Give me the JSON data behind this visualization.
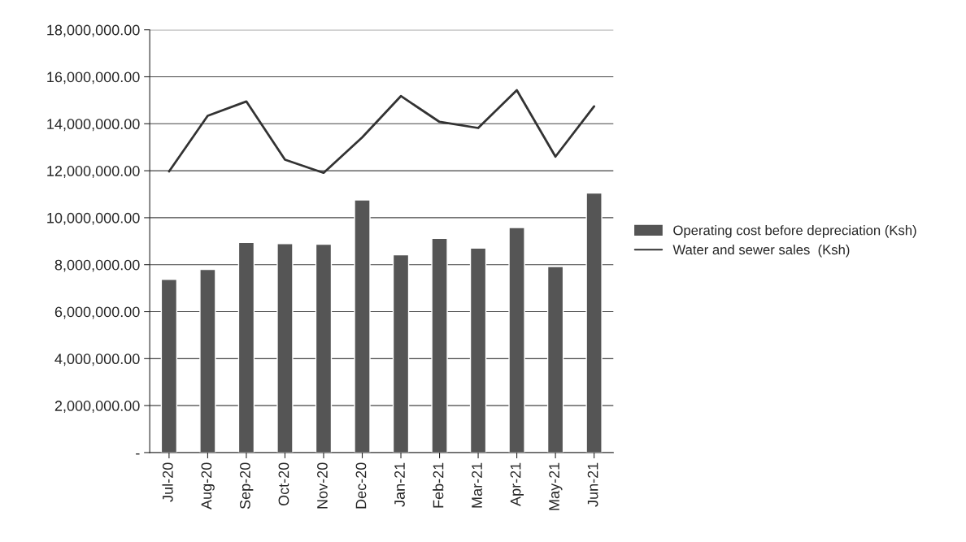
{
  "chart_data": {
    "type": "bar",
    "categories": [
      "Jul-20",
      "Aug-20",
      "Sep-20",
      "Oct-20",
      "Nov-20",
      "Dec-20",
      "Jan-21",
      "Feb-21",
      "Mar-21",
      "Apr-21",
      "May-21",
      "Jun-21"
    ],
    "series": [
      {
        "name": "Operating cost before depreciation (Ksh)",
        "color": "#555555",
        "values": [
          7370000,
          7800000,
          8950000,
          8900000,
          8870000,
          10760000,
          8420000,
          9120000,
          8710000,
          9580000,
          7920000,
          11050000
        ]
      },
      {
        "name": "Water and sewer sales  (Ksh)",
        "type": "line",
        "color": "#333333",
        "values": [
          11970000,
          14340000,
          14950000,
          12470000,
          11910000,
          13420000,
          15180000,
          14080000,
          13820000,
          15430000,
          12600000,
          14740000
        ]
      }
    ],
    "ylim": [
      0,
      18000000
    ],
    "yticks": [
      {
        "value": 0,
        "label": "-"
      },
      {
        "value": 2000000,
        "label": "2,000,000.00"
      },
      {
        "value": 4000000,
        "label": "4,000,000.00"
      },
      {
        "value": 6000000,
        "label": "6,000,000.00"
      },
      {
        "value": 8000000,
        "label": "8,000,000.00"
      },
      {
        "value": 10000000,
        "label": "10,000,000.00"
      },
      {
        "value": 12000000,
        "label": "12,000,000.00"
      },
      {
        "value": 14000000,
        "label": "14,000,000.00"
      },
      {
        "value": 16000000,
        "label": "16,000,000.00"
      },
      {
        "value": 18000000,
        "label": "18,000,000.00"
      }
    ],
    "grid": "y",
    "legend": "right"
  }
}
